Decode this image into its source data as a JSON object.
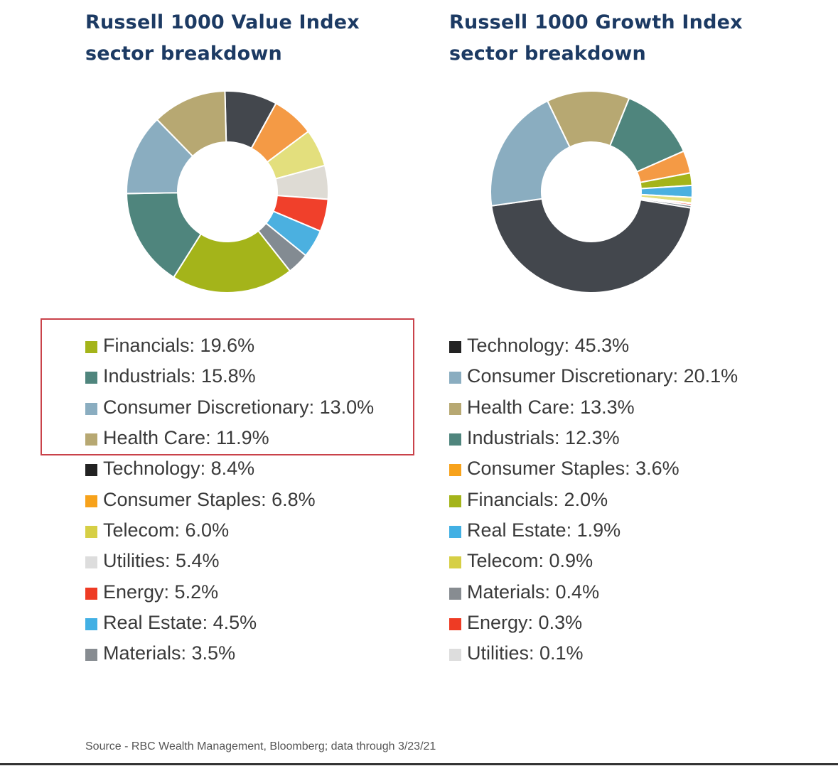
{
  "chart_data": [
    {
      "type": "pie",
      "style": "donut",
      "title": "Russell 1000 Value Index sector breakdown",
      "unit": "%",
      "slices": [
        {
          "label": "Financials",
          "value": 19.6,
          "display": "Financials: 19.6%",
          "color": "#a4b41a"
        },
        {
          "label": "Industrials",
          "value": 15.8,
          "display": "Industrials: 15.8%",
          "color": "#4f857d"
        },
        {
          "label": "Consumer Discretionary",
          "value": 13.0,
          "display": "Consumer Discretionary: 13.0%",
          "color": "#8aadc0"
        },
        {
          "label": "Health Care",
          "value": 11.9,
          "display": "Health Care: 11.9%",
          "color": "#b7a872"
        },
        {
          "label": "Technology",
          "value": 8.4,
          "display": "Technology: 8.4%",
          "color": "#43474d"
        },
        {
          "label": "Consumer Staples",
          "value": 6.8,
          "display": "Consumer Staples: 6.8%",
          "color": "#f49a45"
        },
        {
          "label": "Telecom",
          "value": 6.0,
          "display": "Telecom: 6.0%",
          "color": "#e3df7d"
        },
        {
          "label": "Utilities",
          "value": 5.4,
          "display": "Utilities: 5.4%",
          "color": "#dedbd4"
        },
        {
          "label": "Energy",
          "value": 5.2,
          "display": "Energy: 5.2%",
          "color": "#f0402b"
        },
        {
          "label": "Real Estate",
          "value": 4.5,
          "display": "Real Estate: 4.5%",
          "color": "#4bb0e0"
        },
        {
          "label": "Materials",
          "value": 3.5,
          "display": "Materials: 3.5%",
          "color": "#838b92"
        }
      ],
      "highlighted": [
        "Financials",
        "Industrials",
        "Consumer Discretionary",
        "Health Care"
      ]
    },
    {
      "type": "pie",
      "style": "donut",
      "title": "Russell 1000 Growth Index sector breakdown",
      "unit": "%",
      "slices": [
        {
          "label": "Technology",
          "value": 45.3,
          "display": "Technology: 45.3%",
          "color": "#43474d"
        },
        {
          "label": "Consumer Discretionary",
          "value": 20.1,
          "display": "Consumer Discretionary: 20.1%",
          "color": "#8aadc0"
        },
        {
          "label": "Health Care",
          "value": 13.3,
          "display": "Health Care: 13.3%",
          "color": "#b7a872"
        },
        {
          "label": "Industrials",
          "value": 12.3,
          "display": "Industrials: 12.3%",
          "color": "#4f857d"
        },
        {
          "label": "Consumer Staples",
          "value": 3.6,
          "display": "Consumer Staples: 3.6%",
          "color": "#f49a45"
        },
        {
          "label": "Financials",
          "value": 2.0,
          "display": "Financials: 2.0%",
          "color": "#a4b41a"
        },
        {
          "label": "Real Estate",
          "value": 1.9,
          "display": "Real Estate: 1.9%",
          "color": "#4bb0e0"
        },
        {
          "label": "Telecom",
          "value": 0.9,
          "display": "Telecom: 0.9%",
          "color": "#e3df7d"
        },
        {
          "label": "Materials",
          "value": 0.4,
          "display": "Materials: 0.4%",
          "color": "#838b92"
        },
        {
          "label": "Energy",
          "value": 0.3,
          "display": "Energy: 0.3%",
          "color": "#f0402b"
        },
        {
          "label": "Utilities",
          "value": 0.1,
          "display": "Utilities: 0.1%",
          "color": "#dedbd4"
        }
      ]
    }
  ],
  "legend_swatch_colors": {
    "Technology": "#222222",
    "Consumer Staples": "#f7a21b",
    "Telecom": "#d6cf45",
    "Utilities": "#dddddd",
    "Energy": "#ee3b24",
    "Real Estate": "#42b0e4",
    "Materials": "#878c91"
  },
  "value_order_cw": [
    "Technology",
    "Consumer Staples",
    "Telecom",
    "Utilities",
    "Energy",
    "Real Estate",
    "Materials",
    "Financials",
    "Industrials",
    "Consumer Discretionary",
    "Health Care"
  ],
  "growth_order_cw": [
    "Health Care",
    "Industrials",
    "Consumer Staples",
    "Financials",
    "Real Estate",
    "Telecom",
    "Utilities",
    "Energy",
    "Materials",
    "Technology",
    "Consumer Discretionary"
  ],
  "highlight_color": "#c9424a",
  "source": "Source - RBC Wealth Management, Bloomberg; data through 3/23/21"
}
